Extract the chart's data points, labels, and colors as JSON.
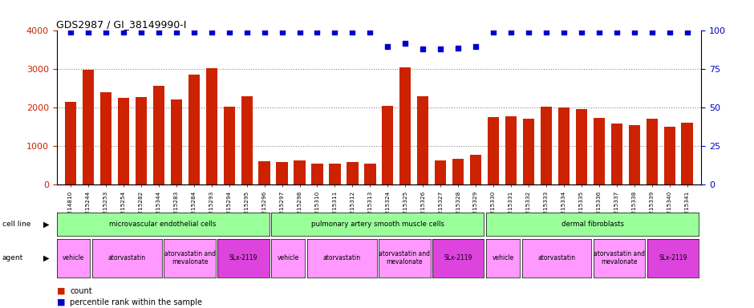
{
  "title": "GDS2987 / GI_38149990-I",
  "samples": [
    "GSM214810",
    "GSM215244",
    "GSM215253",
    "GSM215254",
    "GSM215282",
    "GSM215344",
    "GSM215283",
    "GSM215284",
    "GSM215293",
    "GSM215294",
    "GSM215295",
    "GSM215296",
    "GSM215297",
    "GSM215298",
    "GSM215310",
    "GSM215311",
    "GSM215312",
    "GSM215313",
    "GSM215324",
    "GSM215325",
    "GSM215326",
    "GSM215327",
    "GSM215328",
    "GSM215329",
    "GSM215330",
    "GSM215331",
    "GSM215332",
    "GSM215333",
    "GSM215334",
    "GSM215335",
    "GSM215336",
    "GSM215337",
    "GSM215338",
    "GSM215339",
    "GSM215340",
    "GSM215341"
  ],
  "bar_values": [
    2150,
    2980,
    2400,
    2250,
    2280,
    2570,
    2220,
    2870,
    3020,
    2030,
    2310,
    620,
    600,
    630,
    560,
    560,
    590,
    560,
    2060,
    3040,
    2310,
    640,
    680,
    780,
    1760,
    1770,
    1720,
    2020,
    2010,
    1960,
    1730,
    1600,
    1550,
    1720,
    1510,
    1620
  ],
  "percentile_values": [
    99,
    99,
    99,
    99,
    99,
    99,
    99,
    99,
    99,
    99,
    99,
    99,
    99,
    99,
    99,
    99,
    99,
    99,
    90,
    92,
    88,
    88,
    89,
    90,
    99,
    99,
    99,
    99,
    99,
    99,
    99,
    99,
    99,
    99,
    99,
    99
  ],
  "bar_color": "#cc2200",
  "percentile_color": "#0000cc",
  "ylim_left": [
    0,
    4000
  ],
  "ylim_right": [
    0,
    100
  ],
  "yticks_left": [
    0,
    1000,
    2000,
    3000,
    4000
  ],
  "yticks_right": [
    0,
    25,
    50,
    75,
    100
  ],
  "cell_line_groups": [
    {
      "label": "microvascular endothelial cells",
      "start": 0,
      "end": 12
    },
    {
      "label": "pulmonary artery smooth muscle cells",
      "start": 12,
      "end": 24
    },
    {
      "label": "dermal fibroblasts",
      "start": 24,
      "end": 36
    }
  ],
  "agent_groups": [
    {
      "label": "vehicle",
      "start": 0,
      "end": 2,
      "slx": false
    },
    {
      "label": "atorvastatin",
      "start": 2,
      "end": 6,
      "slx": false
    },
    {
      "label": "atorvastatin and\nmevalonate",
      "start": 6,
      "end": 9,
      "slx": false
    },
    {
      "label": "SLx-2119",
      "start": 9,
      "end": 12,
      "slx": true
    },
    {
      "label": "vehicle",
      "start": 12,
      "end": 14,
      "slx": false
    },
    {
      "label": "atorvastatin",
      "start": 14,
      "end": 18,
      "slx": false
    },
    {
      "label": "atorvastatin and\nmevalonate",
      "start": 18,
      "end": 21,
      "slx": false
    },
    {
      "label": "SLx-2119",
      "start": 21,
      "end": 24,
      "slx": true
    },
    {
      "label": "vehicle",
      "start": 24,
      "end": 26,
      "slx": false
    },
    {
      "label": "atorvastatin",
      "start": 26,
      "end": 30,
      "slx": false
    },
    {
      "label": "atorvastatin and\nmevalonate",
      "start": 30,
      "end": 33,
      "slx": false
    },
    {
      "label": "SLx-2119",
      "start": 33,
      "end": 36,
      "slx": true
    }
  ],
  "cell_line_color": "#99ff99",
  "agent_color_normal": "#ff99ff",
  "agent_color_slx": "#dd44dd",
  "background_color": "#ffffff",
  "grid_color": "#888888"
}
